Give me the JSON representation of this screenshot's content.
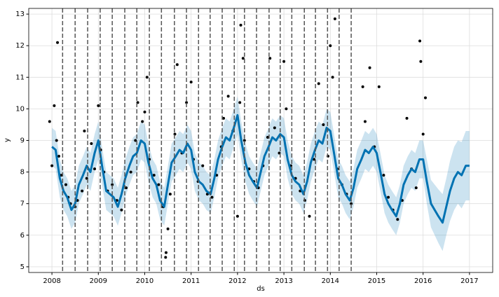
{
  "chart_data": {
    "type": "forecast",
    "xlabel": "ds",
    "ylabel": "y",
    "xlim": [
      2007.5,
      2017.5
    ],
    "ylim": [
      4.82,
      13.18
    ],
    "xticks": [
      2008,
      2009,
      2010,
      2011,
      2012,
      2013,
      2014,
      2015,
      2016,
      2017
    ],
    "yticks": [
      5,
      6,
      7,
      8,
      9,
      10,
      11,
      12,
      13
    ],
    "grid": true,
    "forecast": {
      "color": "#0072B2",
      "band_opacity": 0.2,
      "x": [
        2008,
        2008.08,
        2008.17,
        2008.25,
        2008.33,
        2008.42,
        2008.5,
        2008.58,
        2008.67,
        2008.75,
        2008.83,
        2008.92,
        2009,
        2009.08,
        2009.17,
        2009.25,
        2009.33,
        2009.42,
        2009.5,
        2009.58,
        2009.67,
        2009.75,
        2009.83,
        2009.92,
        2010,
        2010.08,
        2010.17,
        2010.25,
        2010.33,
        2010.42,
        2010.5,
        2010.58,
        2010.67,
        2010.75,
        2010.83,
        2010.92,
        2011,
        2011.08,
        2011.17,
        2011.25,
        2011.33,
        2011.42,
        2011.5,
        2011.58,
        2011.67,
        2011.75,
        2011.83,
        2011.92,
        2012,
        2012.08,
        2012.17,
        2012.25,
        2012.33,
        2012.42,
        2012.5,
        2012.58,
        2012.67,
        2012.75,
        2012.83,
        2012.92,
        2013,
        2013.08,
        2013.17,
        2013.25,
        2013.33,
        2013.42,
        2013.5,
        2013.58,
        2013.67,
        2013.75,
        2013.83,
        2013.92,
        2014,
        2014.08,
        2014.17,
        2014.25,
        2014.33,
        2014.42,
        2014.5,
        2014.58,
        2014.67,
        2014.75,
        2014.83,
        2014.92,
        2015,
        2015.08,
        2015.17,
        2015.25,
        2015.33,
        2015.42,
        2015.5,
        2015.58,
        2015.67,
        2015.75,
        2015.83,
        2015.92,
        2016,
        2016.08,
        2016.17,
        2016.25,
        2016.33,
        2016.42,
        2016.5,
        2016.58,
        2016.67,
        2016.75,
        2016.83,
        2016.92,
        2017
      ],
      "values": [
        8.8,
        8.7,
        7.8,
        7.4,
        7.2,
        6.8,
        7.0,
        7.6,
        7.9,
        8.2,
        8.0,
        8.6,
        9.0,
        8.2,
        7.4,
        7.3,
        7.2,
        6.9,
        7.3,
        7.8,
        8.2,
        8.5,
        8.6,
        9.0,
        8.9,
        8.3,
        7.8,
        7.6,
        7.1,
        6.9,
        7.6,
        8.3,
        8.5,
        8.7,
        8.6,
        8.9,
        8.7,
        8.0,
        7.7,
        7.6,
        7.4,
        7.3,
        7.8,
        8.4,
        8.8,
        9.1,
        9.0,
        9.4,
        9.8,
        9.0,
        8.3,
        7.9,
        7.7,
        7.5,
        8.0,
        8.5,
        8.8,
        9.1,
        9.0,
        9.2,
        9.1,
        8.4,
        7.9,
        7.7,
        7.6,
        7.3,
        7.7,
        8.3,
        8.7,
        9.0,
        8.9,
        9.4,
        9.3,
        8.6,
        7.8,
        7.6,
        7.3,
        7.1,
        7.5,
        8.1,
        8.4,
        8.7,
        8.6,
        8.8,
        8.6,
        8.0,
        7.3,
        7.0,
        6.8,
        6.6,
        7.0,
        7.6,
        7.9,
        8.1,
        8.0,
        8.4,
        8.4,
        7.7,
        7.0,
        6.8,
        6.6,
        6.4,
        6.9,
        7.4,
        7.8,
        8.0,
        7.9,
        8.2,
        8.2
      ],
      "upper": [
        9.4,
        9.3,
        8.4,
        8.0,
        7.8,
        7.4,
        7.6,
        8.2,
        8.5,
        8.8,
        8.6,
        9.2,
        9.6,
        8.8,
        8.0,
        7.9,
        7.8,
        7.5,
        7.9,
        8.4,
        8.8,
        9.1,
        9.2,
        9.6,
        9.5,
        8.9,
        8.4,
        8.2,
        7.7,
        7.5,
        8.2,
        8.9,
        9.1,
        9.3,
        9.2,
        9.5,
        9.3,
        8.6,
        8.3,
        8.2,
        8.0,
        7.9,
        8.4,
        9.0,
        9.4,
        9.7,
        9.6,
        10.0,
        10.4,
        9.6,
        8.9,
        8.5,
        8.3,
        8.1,
        8.6,
        9.1,
        9.4,
        9.7,
        9.6,
        9.8,
        9.7,
        9.0,
        8.5,
        8.3,
        8.2,
        7.9,
        8.3,
        8.9,
        9.3,
        9.6,
        9.5,
        10.0,
        9.9,
        9.2,
        8.4,
        8.2,
        7.9,
        7.7,
        8.1,
        8.7,
        9.0,
        9.3,
        9.2,
        9.4,
        9.2,
        8.6,
        7.9,
        7.6,
        7.4,
        7.2,
        7.6,
        8.2,
        8.5,
        8.7,
        8.6,
        9.0,
        9.0,
        8.4,
        7.75,
        7.6,
        7.45,
        7.3,
        7.8,
        8.35,
        8.8,
        9.0,
        8.95,
        9.3,
        9.3
      ],
      "lower": [
        8.2,
        8.1,
        7.2,
        6.8,
        6.6,
        6.2,
        6.4,
        7.0,
        7.3,
        7.6,
        7.4,
        8.0,
        8.4,
        7.6,
        6.8,
        6.7,
        6.6,
        6.3,
        6.7,
        7.2,
        7.6,
        7.9,
        8.0,
        8.4,
        8.3,
        7.7,
        7.2,
        7.0,
        6.5,
        6.3,
        7.0,
        7.7,
        7.9,
        8.1,
        8.0,
        8.3,
        8.1,
        7.4,
        7.1,
        7.0,
        6.8,
        6.7,
        7.2,
        7.8,
        8.2,
        8.5,
        8.4,
        8.8,
        9.2,
        8.4,
        7.7,
        7.3,
        7.1,
        6.9,
        7.4,
        7.9,
        8.2,
        8.5,
        8.4,
        8.6,
        8.5,
        7.8,
        7.3,
        7.1,
        7.0,
        6.7,
        7.1,
        7.7,
        8.1,
        8.4,
        8.3,
        8.8,
        8.7,
        8.0,
        7.2,
        7.0,
        6.7,
        6.5,
        6.9,
        7.5,
        7.8,
        8.1,
        8.0,
        8.2,
        8.0,
        7.4,
        6.7,
        6.4,
        6.2,
        6.0,
        6.4,
        7.0,
        7.3,
        7.5,
        7.4,
        7.8,
        7.8,
        7.0,
        6.25,
        6.0,
        5.75,
        5.5,
        6.0,
        6.45,
        6.8,
        7.0,
        6.85,
        7.1,
        7.1
      ]
    },
    "observed": {
      "color": "#000000",
      "x": [
        2007.95,
        2008.0,
        2008.05,
        2008.1,
        2008.12,
        2008.15,
        2008.2,
        2008.3,
        2008.35,
        2008.4,
        2008.5,
        2008.55,
        2008.65,
        2008.7,
        2008.75,
        2008.85,
        2008.92,
        2009.0,
        2009.05,
        2009.12,
        2009.2,
        2009.3,
        2009.4,
        2009.5,
        2009.6,
        2009.7,
        2009.8,
        2009.85,
        2009.95,
        2010.0,
        2010.05,
        2010.1,
        2010.2,
        2010.3,
        2010.4,
        2010.45,
        2010.46,
        2010.5,
        2010.55,
        2010.65,
        2010.7,
        2010.8,
        2010.9,
        2011.0,
        2011.05,
        2011.15,
        2011.25,
        2011.35,
        2011.45,
        2011.55,
        2011.65,
        2011.7,
        2011.8,
        2011.9,
        2012.0,
        2012.05,
        2012.07,
        2012.12,
        2012.15,
        2012.25,
        2012.35,
        2012.45,
        2012.55,
        2012.65,
        2012.7,
        2012.8,
        2012.9,
        2013.0,
        2013.05,
        2013.15,
        2013.25,
        2013.35,
        2013.45,
        2013.55,
        2013.65,
        2013.75,
        2013.85,
        2013.95,
        2014.0,
        2014.05,
        2014.1,
        2014.15,
        2014.25,
        2014.35,
        2014.45,
        2014.7,
        2014.75,
        2014.85,
        2014.95,
        2015.05,
        2015.15,
        2015.25,
        2015.35,
        2015.45,
        2015.55,
        2015.65,
        2015.75,
        2015.85,
        2015.93,
        2015.95,
        2016.0,
        2016.05
      ],
      "values": [
        9.6,
        8.2,
        10.1,
        9.0,
        12.1,
        8.5,
        7.9,
        7.6,
        7.2,
        7.0,
        6.9,
        7.1,
        7.4,
        9.3,
        7.8,
        8.9,
        8.1,
        10.1,
        8.7,
        8.0,
        7.4,
        7.6,
        7.1,
        6.8,
        7.5,
        8.0,
        9.0,
        10.2,
        9.6,
        9.9,
        11.0,
        8.4,
        7.9,
        7.6,
        6.9,
        5.3,
        5.45,
        6.2,
        7.3,
        9.2,
        11.4,
        8.6,
        10.2,
        10.85,
        8.4,
        7.7,
        8.2,
        7.3,
        7.2,
        7.9,
        8.8,
        9.7,
        10.4,
        9.3,
        6.6,
        10.2,
        12.65,
        11.6,
        9.0,
        8.1,
        7.7,
        7.5,
        8.2,
        9.1,
        11.6,
        9.4,
        8.6,
        11.5,
        10.0,
        8.2,
        7.8,
        7.4,
        7.1,
        6.6,
        8.4,
        10.8,
        9.5,
        8.5,
        12.0,
        11.0,
        12.85,
        8.1,
        7.6,
        7.3,
        7.0,
        10.7,
        9.6,
        11.3,
        8.8,
        10.7,
        7.9,
        7.2,
        6.8,
        6.5,
        7.1,
        9.7,
        8.1,
        7.5,
        12.15,
        11.5,
        9.2,
        10.35
      ]
    },
    "changepoints": {
      "color": "#555555",
      "x": [
        2008.23,
        2008.5,
        2008.77,
        2009.04,
        2009.3,
        2009.57,
        2009.83,
        2010.1,
        2010.36,
        2010.64,
        2010.9,
        2011.16,
        2011.41,
        2011.67,
        2011.93,
        2012.15,
        2012.41,
        2012.68,
        2012.92,
        2013.17,
        2013.44,
        2013.68,
        2013.94,
        2014.19,
        2014.45
      ]
    }
  }
}
